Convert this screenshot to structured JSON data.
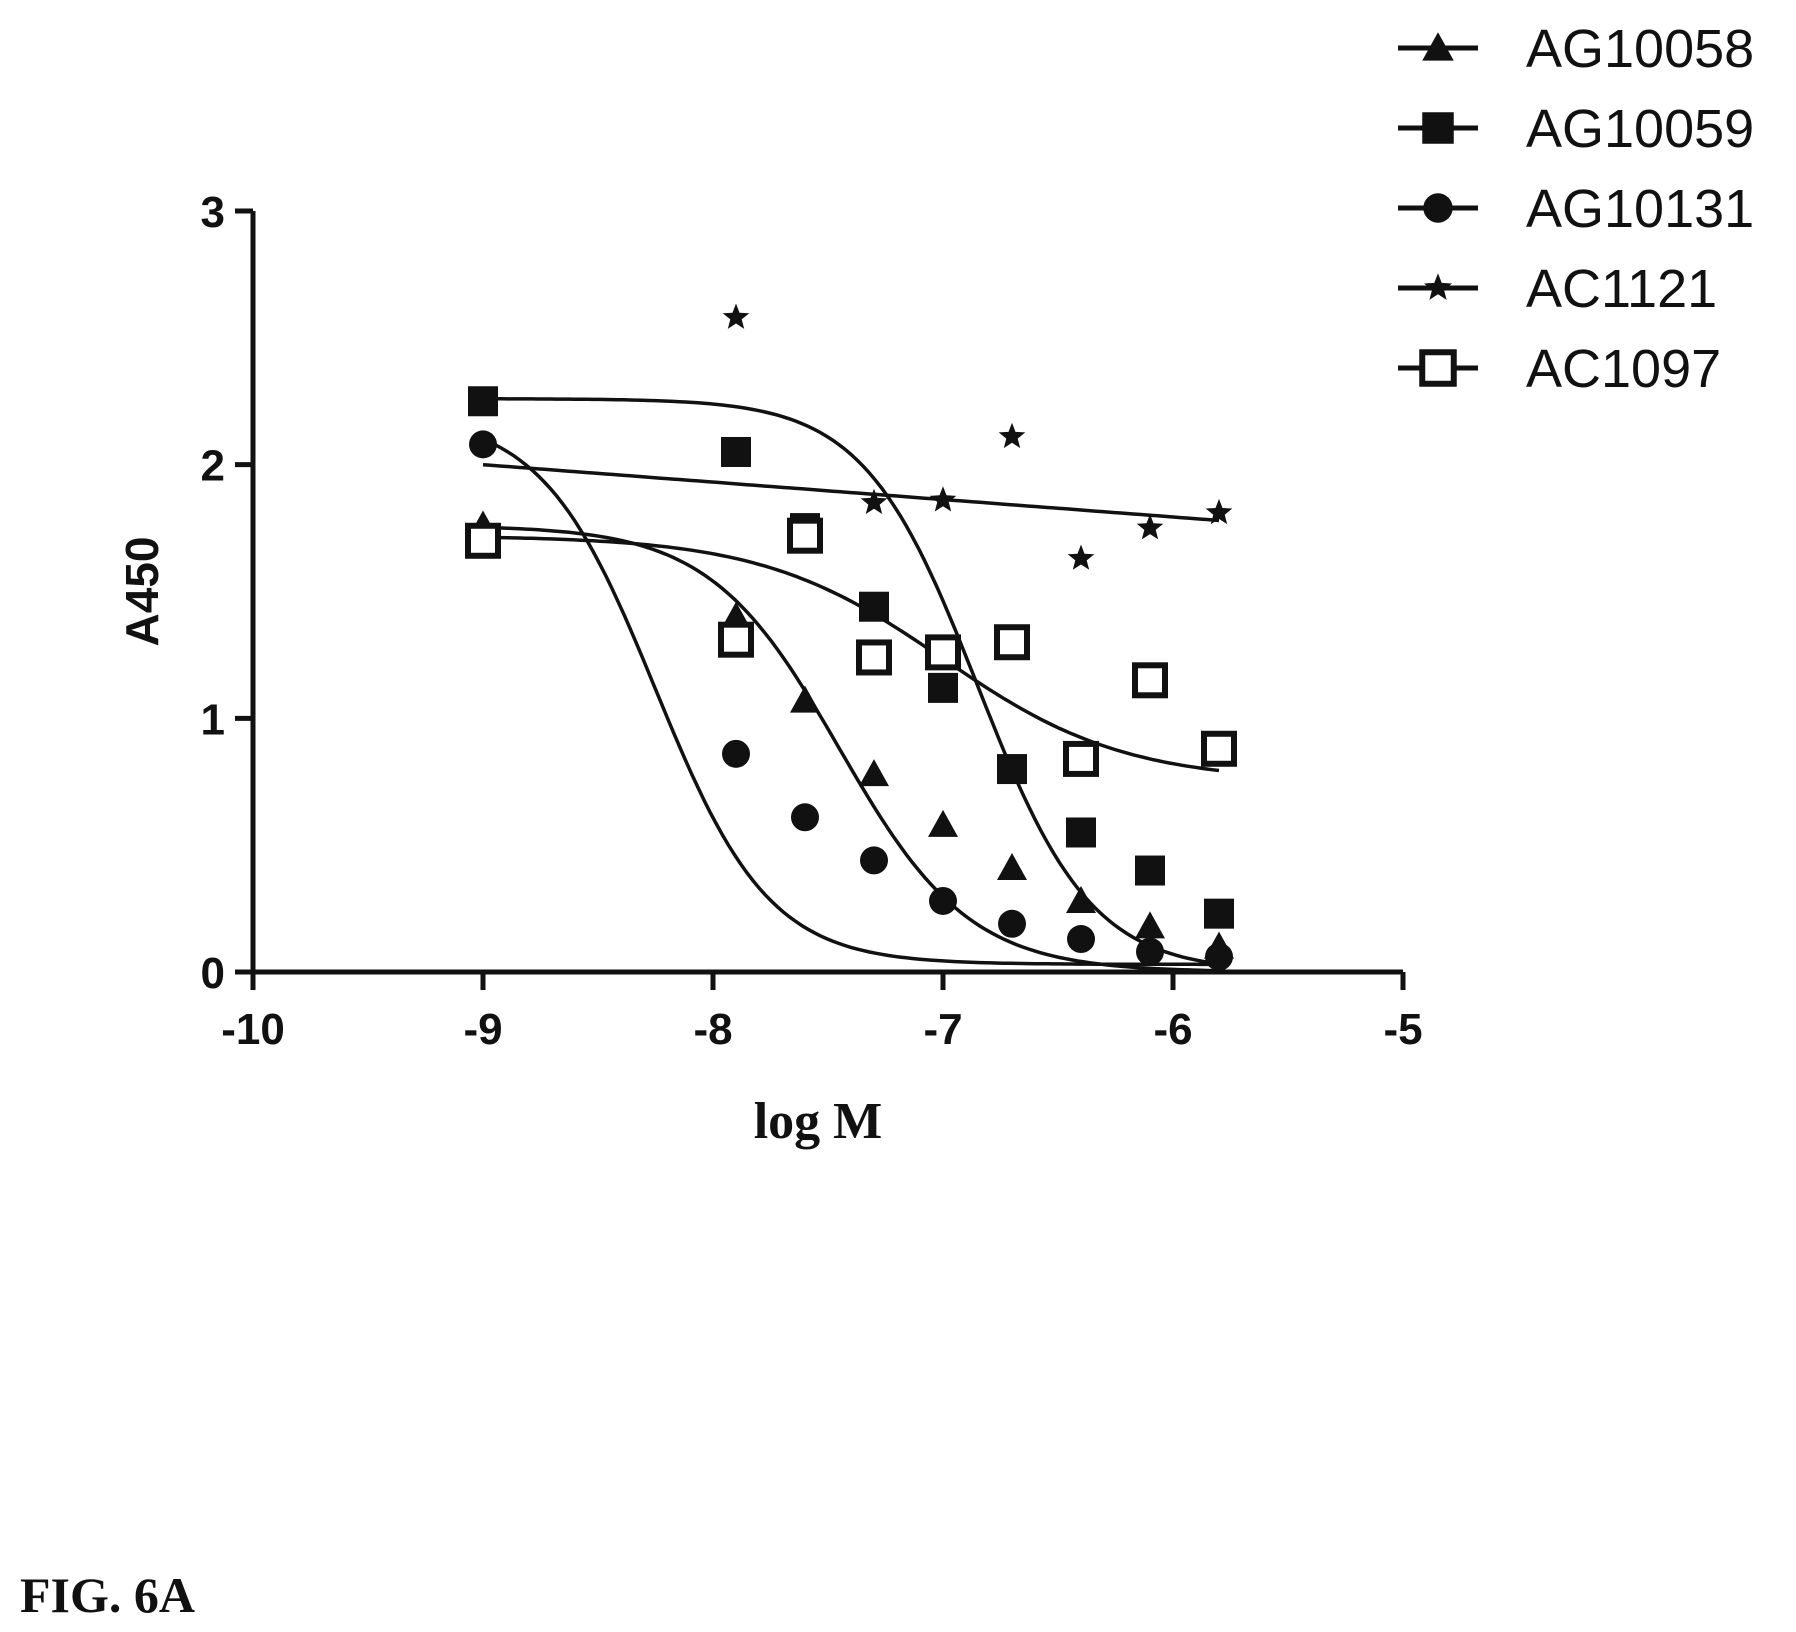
{
  "figure_label": "FIG. 6A",
  "chart_data": {
    "type": "scatter",
    "xlabel": "log M",
    "ylabel": "A450",
    "xlim": [
      -10,
      -5
    ],
    "ylim": [
      0,
      3
    ],
    "x_ticks": [
      -10,
      -9,
      -8,
      -7,
      -6,
      -5
    ],
    "y_ticks": [
      0,
      1,
      2,
      3
    ],
    "x_tick_labels": [
      "-10",
      "-9",
      "-8",
      "-7",
      "-6",
      "-5"
    ],
    "y_tick_labels": [
      "0",
      "1",
      "2",
      "3"
    ],
    "grid": false,
    "legend_position": "top-right",
    "series": [
      {
        "name": "AG10058",
        "marker": "triangle",
        "x": [
          -9.0,
          -7.9,
          -7.6,
          -7.3,
          -7.0,
          -6.7,
          -6.4,
          -6.1,
          -5.8
        ],
        "y": [
          1.76,
          1.4,
          1.07,
          0.78,
          0.58,
          0.41,
          0.28,
          0.18,
          0.1
        ],
        "fit": {
          "top": 1.76,
          "bottom": 0.0,
          "log_ic50": -7.45,
          "hill": 0.7
        }
      },
      {
        "name": "AG10059",
        "marker": "filled-square",
        "x": [
          -9.0,
          -7.9,
          -7.6,
          -7.3,
          -7.0,
          -6.7,
          -6.4,
          -6.1,
          -5.8
        ],
        "y": [
          2.25,
          2.05,
          1.75,
          1.44,
          1.12,
          0.8,
          0.55,
          0.4,
          0.23
        ],
        "fit": {
          "top": 2.26,
          "bottom": 0.0,
          "log_ic50": -6.85,
          "hill": 0.8
        }
      },
      {
        "name": "AG10131",
        "marker": "circle",
        "x": [
          -9.0,
          -7.9,
          -7.6,
          -7.3,
          -7.0,
          -6.7,
          -6.4,
          -6.1,
          -5.8
        ],
        "y": [
          2.08,
          0.86,
          0.61,
          0.44,
          0.28,
          0.19,
          0.13,
          0.08,
          0.06
        ],
        "fit": {
          "top": 2.2,
          "bottom": 0.03,
          "log_ic50": -8.25,
          "hill": 0.8
        }
      },
      {
        "name": "AC1121",
        "marker": "star",
        "x": [
          -9.0,
          -7.9,
          -7.6,
          -7.3,
          -7.0,
          -6.7,
          -6.4,
          -6.1,
          -5.8
        ],
        "y": [
          1.73,
          2.58,
          1.73,
          1.85,
          1.86,
          2.11,
          1.63,
          1.75,
          1.81
        ],
        "fit": {
          "linear": true,
          "y_start": 2.0,
          "y_end": 1.78
        }
      },
      {
        "name": "AC1097",
        "marker": "open-square",
        "x": [
          -9.0,
          -7.9,
          -7.6,
          -7.3,
          -7.0,
          -6.7,
          -6.4,
          -6.1,
          -5.8
        ],
        "y": [
          1.7,
          1.31,
          1.72,
          1.24,
          1.26,
          1.3,
          0.84,
          1.15,
          0.88
        ],
        "fit": {
          "top": 1.72,
          "bottom": 0.75,
          "log_ic50": -7.0,
          "hill": 0.5
        }
      }
    ]
  }
}
